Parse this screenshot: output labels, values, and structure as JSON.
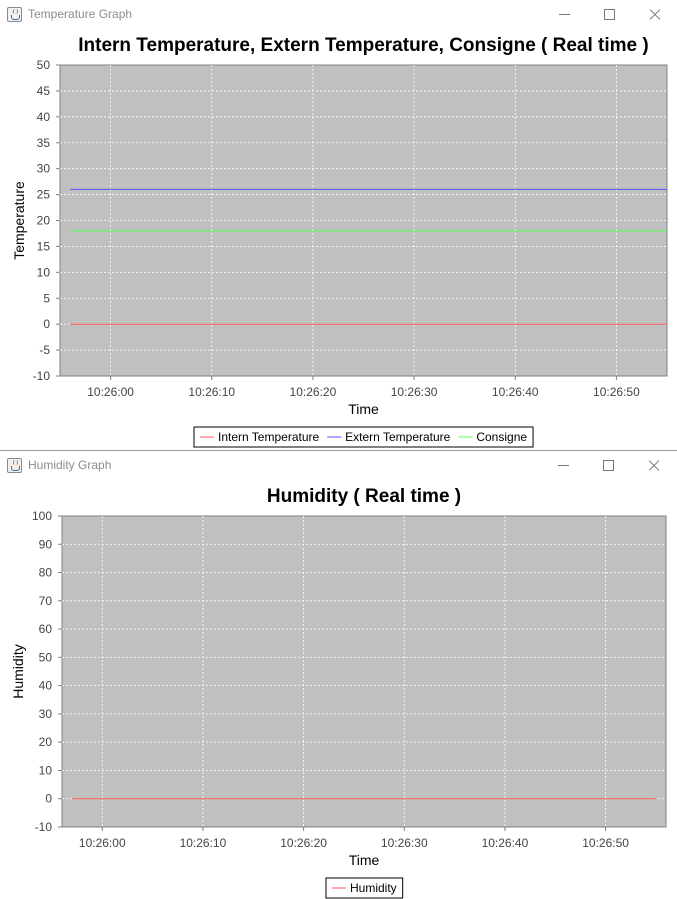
{
  "windows": [
    {
      "key": "temp",
      "title": "Temperature Graph",
      "chart_data": {
        "type": "line",
        "title": "Intern Temperature, Extern Temperature, Consigne ( Real time )",
        "xlabel": "Time",
        "ylabel": "Temperature",
        "ylim": [
          -10,
          50
        ],
        "yticks": [
          -10,
          -5,
          0,
          5,
          10,
          15,
          20,
          25,
          30,
          35,
          40,
          45,
          50
        ],
        "x_range": [
          "10:25:55",
          "10:26:55"
        ],
        "xticks": [
          "10:26:00",
          "10:26:10",
          "10:26:20",
          "10:26:30",
          "10:26:40",
          "10:26:50"
        ],
        "grid": true,
        "legend": "bottom-center",
        "series": [
          {
            "name": "Intern Temperature",
            "color": "#ff5555",
            "x": [
              "10:25:56",
              "10:26:55"
            ],
            "values": [
              0,
              0
            ]
          },
          {
            "name": "Extern Temperature",
            "color": "#5555ff",
            "x": [
              "10:25:56",
              "10:26:55"
            ],
            "values": [
              26,
              26
            ]
          },
          {
            "name": "Consigne",
            "color": "#55ff55",
            "x": [
              "10:25:56",
              "10:26:55"
            ],
            "values": [
              18,
              18
            ]
          }
        ]
      }
    },
    {
      "key": "hum",
      "title": "Humidity Graph",
      "chart_data": {
        "type": "line",
        "title": "Humidity ( Real time )",
        "xlabel": "Time",
        "ylabel": "Humidity",
        "ylim": [
          -10,
          100
        ],
        "yticks": [
          -10,
          0,
          10,
          20,
          30,
          40,
          50,
          60,
          70,
          80,
          90,
          100
        ],
        "x_range": [
          "10:25:56",
          "10:26:56"
        ],
        "xticks": [
          "10:26:00",
          "10:26:10",
          "10:26:20",
          "10:26:30",
          "10:26:40",
          "10:26:50"
        ],
        "grid": true,
        "legend": "bottom-center",
        "series": [
          {
            "name": "Humidity",
            "color": "#ff5555",
            "x": [
              "10:25:57",
              "10:26:55"
            ],
            "values": [
              0,
              0
            ]
          }
        ]
      }
    }
  ],
  "colors": {
    "plot_background": "#c0c0c0",
    "grid": "#ffffff",
    "window_background": "#ffffff"
  }
}
